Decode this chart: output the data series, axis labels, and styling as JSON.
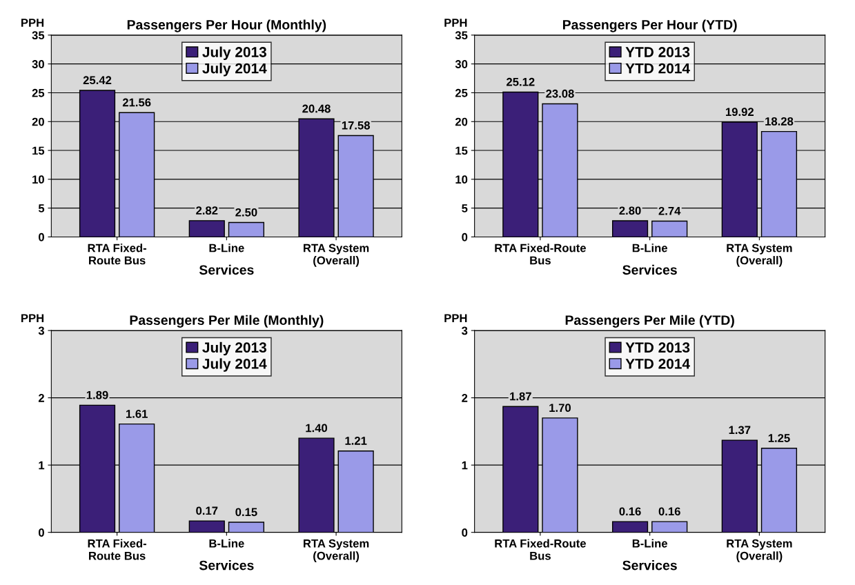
{
  "chart_data": [
    {
      "type": "bar",
      "title": "Passengers Per Hour (Monthly)",
      "ylabel": "PPH",
      "xlabel": "Services",
      "categories": [
        "RTA Fixed-\nRoute Bus",
        "B-Line",
        "RTA System\n(Overall)"
      ],
      "series": [
        {
          "name": "July 2013",
          "color": "#3b1f78",
          "values": [
            25.42,
            2.82,
            20.48
          ],
          "value_labels": [
            "25.42",
            "2.82",
            "20.48"
          ]
        },
        {
          "name": "July 2014",
          "color": "#9a9ae8",
          "values": [
            21.56,
            2.5,
            17.58
          ],
          "value_labels": [
            "21.56",
            "2.50",
            "17.58"
          ]
        }
      ],
      "ylim": [
        0,
        35
      ],
      "yticks": [
        0,
        5,
        10,
        15,
        20,
        25,
        30,
        35
      ],
      "grid": "y",
      "legend": "top"
    },
    {
      "type": "bar",
      "title": "Passengers Per Hour (YTD)",
      "ylabel": "PPH",
      "xlabel": "Services",
      "categories": [
        "RTA Fixed-Route\nBus",
        "B-Line",
        "RTA System\n(Overall)"
      ],
      "series": [
        {
          "name": "YTD 2013",
          "color": "#3b1f78",
          "values": [
            25.12,
            2.8,
            19.92
          ],
          "value_labels": [
            "25.12",
            "2.80",
            "19.92"
          ]
        },
        {
          "name": "YTD 2014",
          "color": "#9a9ae8",
          "values": [
            23.08,
            2.74,
            18.28
          ],
          "value_labels": [
            "23.08",
            "2.74",
            "18.28"
          ]
        }
      ],
      "ylim": [
        0,
        35
      ],
      "yticks": [
        0,
        5,
        10,
        15,
        20,
        25,
        30,
        35
      ],
      "grid": "y",
      "legend": "top"
    },
    {
      "type": "bar",
      "title": "Passengers Per Mile (Monthly)",
      "ylabel": "PPH",
      "xlabel": "Services",
      "categories": [
        "RTA Fixed-\nRoute Bus",
        "B-Line",
        "RTA System\n(Overall)"
      ],
      "series": [
        {
          "name": "July 2013",
          "color": "#3b1f78",
          "values": [
            1.89,
            0.17,
            1.4
          ],
          "value_labels": [
            "1.89",
            "0.17",
            "1.40"
          ]
        },
        {
          "name": "July 2014",
          "color": "#9a9ae8",
          "values": [
            1.61,
            0.15,
            1.21
          ],
          "value_labels": [
            "1.61",
            "0.15",
            "1.21"
          ]
        }
      ],
      "ylim": [
        0,
        3
      ],
      "yticks": [
        0,
        1,
        2,
        3
      ],
      "grid": "y",
      "legend": "top"
    },
    {
      "type": "bar",
      "title": "Passengers Per Mile (YTD)",
      "ylabel": "PPH",
      "xlabel": "Services",
      "categories": [
        "RTA Fixed-Route\nBus",
        "B-Line",
        "RTA System\n(Overall)"
      ],
      "series": [
        {
          "name": "YTD 2013",
          "color": "#3b1f78",
          "values": [
            1.87,
            0.16,
            1.37
          ],
          "value_labels": [
            "1.87",
            "0.16",
            "1.37"
          ]
        },
        {
          "name": "YTD 2014",
          "color": "#9a9ae8",
          "values": [
            1.7,
            0.16,
            1.25
          ],
          "value_labels": [
            "1.70",
            "0.16",
            "1.25"
          ]
        }
      ],
      "ylim": [
        0,
        3
      ],
      "yticks": [
        0,
        1,
        2,
        3
      ],
      "grid": "y",
      "legend": "top"
    }
  ]
}
